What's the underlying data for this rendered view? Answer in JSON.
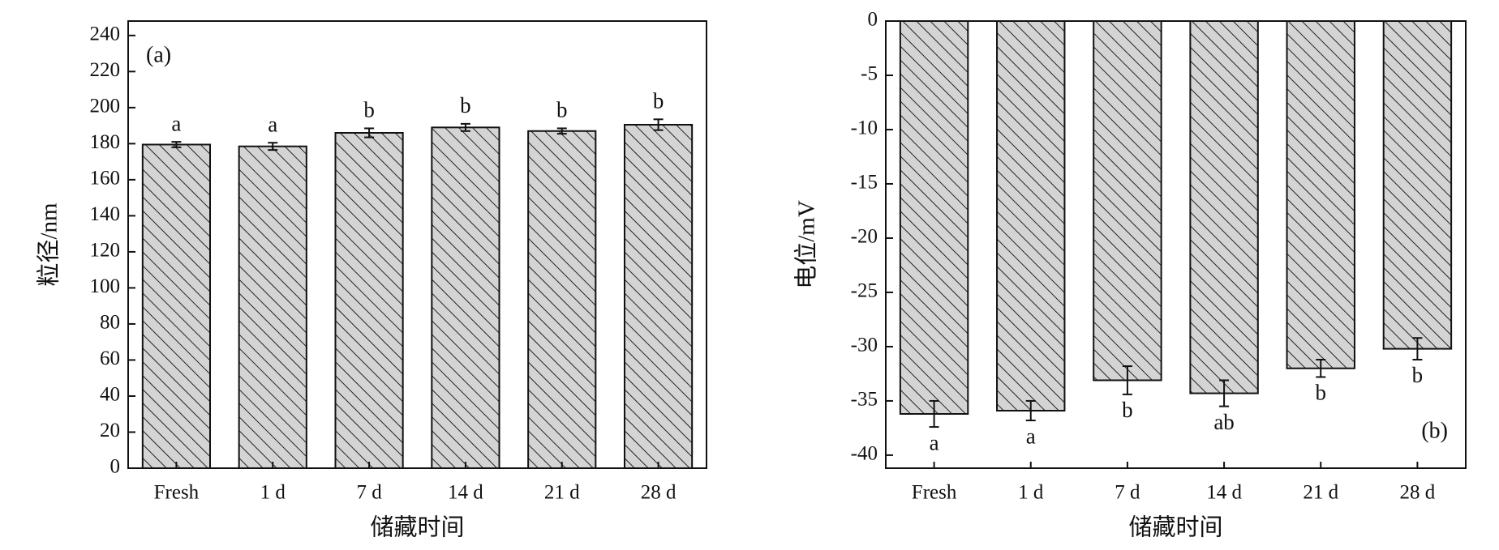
{
  "chart_data": [
    {
      "type": "bar",
      "panel_label": "(a)",
      "panel_label_corner": "top-left",
      "ylabel": "粒径/nm",
      "xlabel": "储藏时间",
      "categories": [
        "Fresh",
        "1 d",
        "7 d",
        "14 d",
        "21 d",
        "28 d"
      ],
      "values": [
        179.5,
        178.5,
        186,
        189,
        187,
        190.5
      ],
      "errors": [
        1.5,
        2,
        2.5,
        2,
        1.5,
        3
      ],
      "significance": [
        "a",
        "a",
        "b",
        "b",
        "b",
        "b"
      ],
      "ylim": [
        0,
        248
      ],
      "yticks": [
        0,
        20,
        40,
        60,
        80,
        100,
        120,
        140,
        160,
        180,
        200,
        220,
        240
      ],
      "color": "#d4d4d4"
    },
    {
      "type": "bar",
      "panel_label": "(b)",
      "panel_label_corner": "bottom-right",
      "ylabel": "电位/mV",
      "xlabel": "储藏时间",
      "categories": [
        "Fresh",
        "1 d",
        "7 d",
        "14 d",
        "21 d",
        "28 d"
      ],
      "values": [
        -36.2,
        -35.9,
        -33.1,
        -34.3,
        -32,
        -30.2
      ],
      "errors": [
        1.2,
        0.9,
        1.3,
        1.2,
        0.8,
        1
      ],
      "significance": [
        "a",
        "a",
        "b",
        "ab",
        "b",
        "b"
      ],
      "ylim": [
        -41.2,
        0
      ],
      "yticks": [
        0,
        -5,
        -10,
        -15,
        -20,
        -25,
        -30,
        -35,
        -40
      ],
      "color": "#d4d4d4"
    }
  ]
}
